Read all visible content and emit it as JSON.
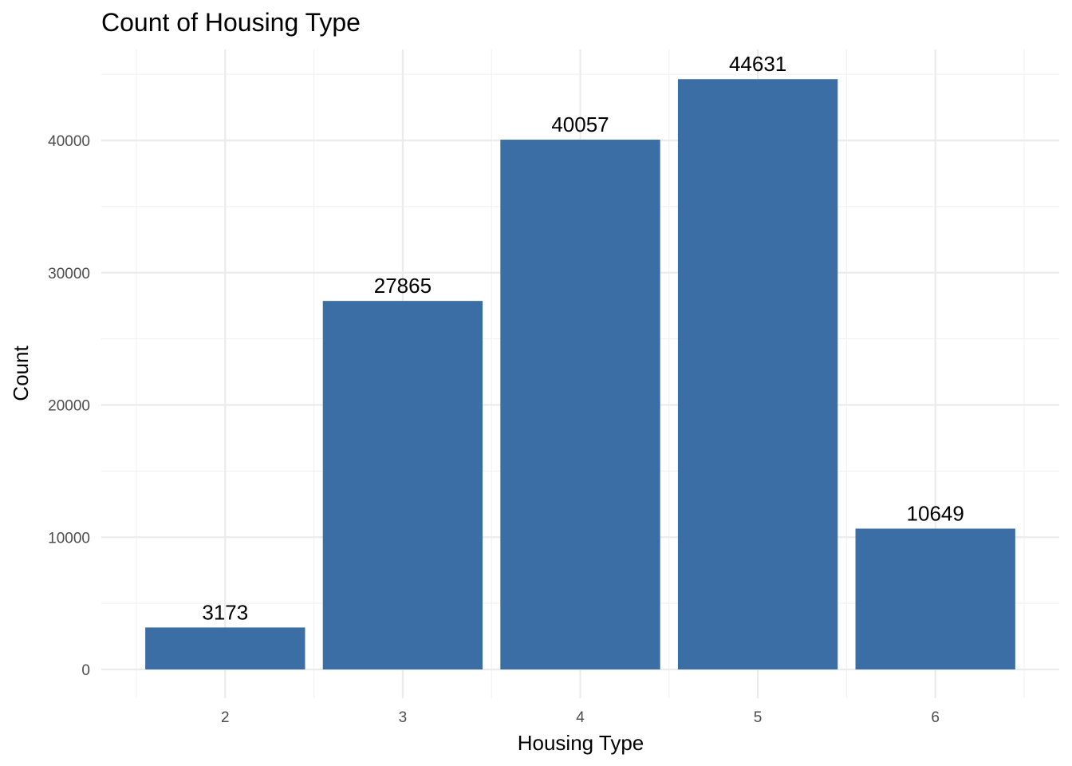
{
  "chart_data": {
    "type": "bar",
    "title": "Count of Housing Type",
    "xlabel": "Housing Type",
    "ylabel": "Count",
    "categories": [
      "2",
      "3",
      "4",
      "5",
      "6"
    ],
    "values": [
      3173,
      27865,
      40057,
      44631,
      10649
    ],
    "data_labels": [
      "3173",
      "27865",
      "40057",
      "44631",
      "10649"
    ],
    "y_ticks": [
      0,
      10000,
      20000,
      30000,
      40000
    ],
    "y_tick_labels": [
      "0",
      "10000",
      "20000",
      "30000",
      "40000"
    ],
    "ylim": [
      0,
      46900
    ],
    "grid": true,
    "legend": "none",
    "bar_color": "#3a6ea5"
  }
}
